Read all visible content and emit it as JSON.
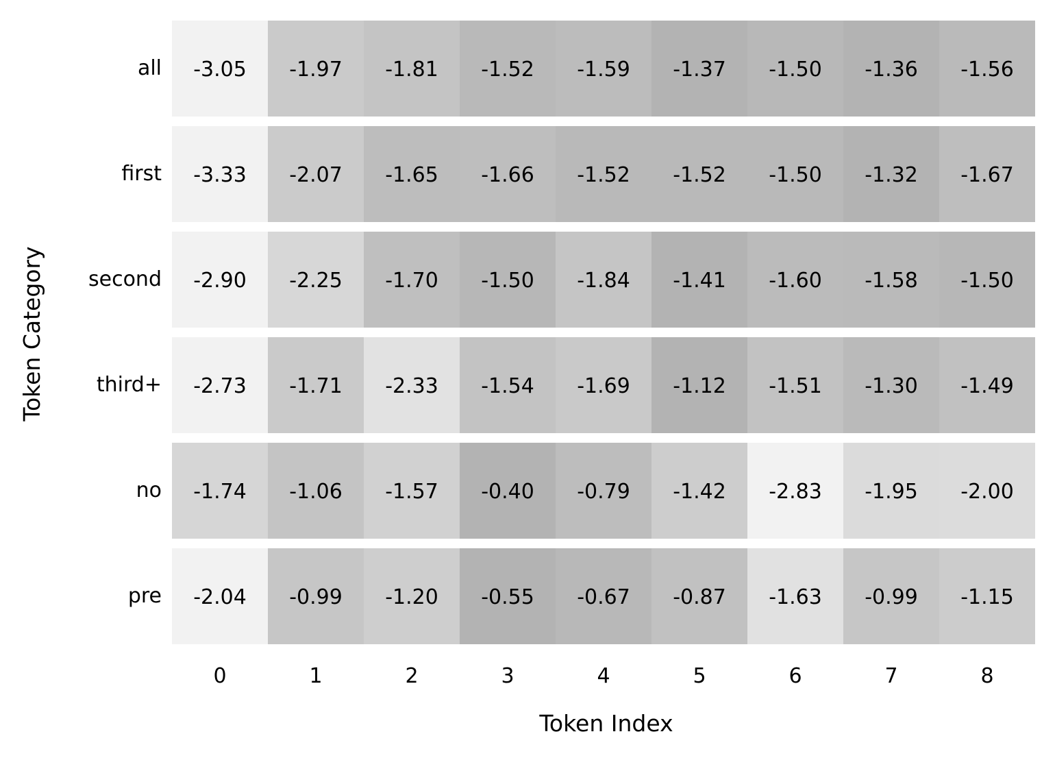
{
  "chart_data": {
    "type": "heatmap",
    "xlabel": "Token Index",
    "ylabel": "Token Category",
    "x_ticks": [
      "0",
      "1",
      "2",
      "3",
      "4",
      "5",
      "6",
      "7",
      "8"
    ],
    "y_ticks": [
      "all",
      "first",
      "second",
      "third+",
      "no",
      "pre"
    ],
    "values": [
      [
        -3.05,
        -1.97,
        -1.81,
        -1.52,
        -1.59,
        -1.37,
        -1.5,
        -1.36,
        -1.56
      ],
      [
        -3.33,
        -2.07,
        -1.65,
        -1.66,
        -1.52,
        -1.52,
        -1.5,
        -1.32,
        -1.67
      ],
      [
        -2.9,
        -2.25,
        -1.7,
        -1.5,
        -1.84,
        -1.41,
        -1.6,
        -1.58,
        -1.5
      ],
      [
        -2.73,
        -1.71,
        -2.33,
        -1.54,
        -1.69,
        -1.12,
        -1.51,
        -1.3,
        -1.49
      ],
      [
        -1.74,
        -1.06,
        -1.57,
        -0.4,
        -0.79,
        -1.42,
        -2.83,
        -1.95,
        -2.0
      ],
      [
        -2.04,
        -0.99,
        -1.2,
        -0.55,
        -0.67,
        -0.87,
        -1.63,
        -0.99,
        -1.15
      ]
    ],
    "colormap": "greys, normalized per row",
    "color_low": "#f2f2f2",
    "color_high": "#b3b3b3",
    "grid": false,
    "legend": "none"
  }
}
